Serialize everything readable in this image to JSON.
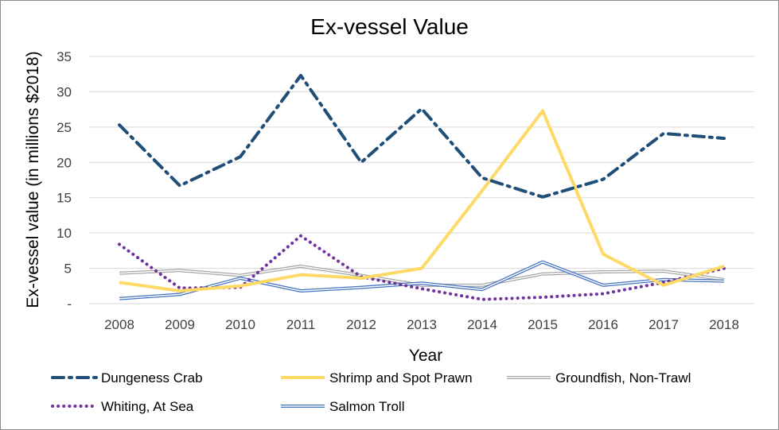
{
  "chart_data": {
    "type": "line",
    "title": "Ex-vessel Value",
    "xlabel": "Year",
    "ylabel": "Ex-vessel value (in millions $2018)",
    "x": [
      "2008",
      "2009",
      "2010",
      "2011",
      "2012",
      "2013",
      "2014",
      "2015",
      "2016",
      "2017",
      "2018"
    ],
    "ylim": [
      0,
      35
    ],
    "yticks": [
      0,
      5,
      10,
      15,
      20,
      25,
      30,
      35
    ],
    "ytick_labels": [
      "-",
      "5",
      "10",
      "15",
      "20",
      "25",
      "30",
      "35"
    ],
    "grid": "horizontal",
    "legend_position": "bottom",
    "series": [
      {
        "name": "Dungeness Crab",
        "values": [
          25.3,
          16.7,
          20.8,
          32.3,
          20.0,
          27.6,
          17.8,
          15.1,
          17.6,
          24.1,
          23.4
        ],
        "color": "#1f4e79",
        "style": "dash-dot"
      },
      {
        "name": "Shrimp and Spot Prawn",
        "values": [
          3.0,
          1.8,
          2.5,
          4.1,
          3.6,
          5.0,
          16.0,
          27.3,
          7.0,
          2.6,
          5.3
        ],
        "color": "#ffd966",
        "style": "solid"
      },
      {
        "name": "Groundfish, Non-Trawl",
        "values": [
          4.3,
          4.7,
          4.0,
          5.3,
          4.0,
          2.6,
          2.6,
          4.2,
          4.5,
          4.6,
          3.4
        ],
        "color": "#a6a6a6",
        "style": "double"
      },
      {
        "name": "Whiting, At Sea",
        "values": [
          8.4,
          2.2,
          2.3,
          9.6,
          3.8,
          2.1,
          0.6,
          0.9,
          1.4,
          3.0,
          5.0
        ],
        "color": "#7030a0",
        "style": "dotted"
      },
      {
        "name": "Salmon Troll",
        "values": [
          0.7,
          1.3,
          3.6,
          1.8,
          2.3,
          2.9,
          2.0,
          5.9,
          2.6,
          3.4,
          3.2
        ],
        "color": "#4472c4",
        "style": "double"
      }
    ]
  }
}
